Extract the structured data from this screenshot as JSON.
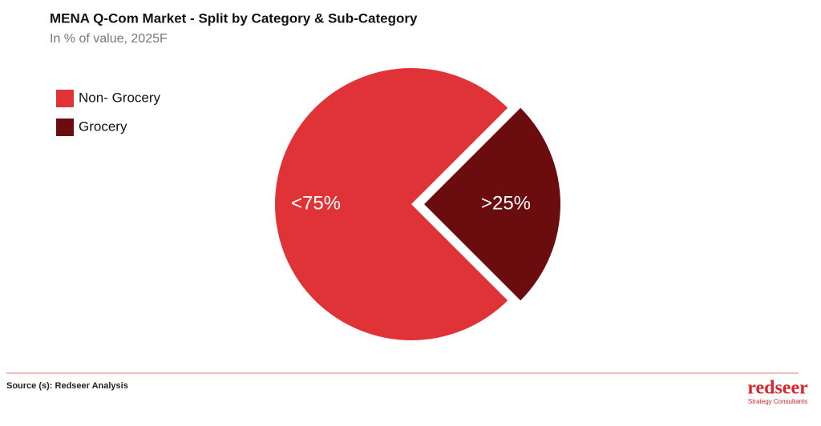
{
  "chart_data": {
    "type": "pie",
    "title": "MENA Q-Com Market - Split by Category & Sub-Category",
    "subtitle": "In % of value, 2025F",
    "categories": [
      "Non- Grocery",
      "Grocery"
    ],
    "values": [
      75,
      25
    ],
    "value_labels": [
      "<75%",
      ">25%"
    ],
    "colors": [
      "#e03337",
      "#6b0c0e"
    ],
    "legend": "upper left"
  },
  "footer": {
    "source": "Source (s): Redseer Analysis",
    "logo": "redseer",
    "logo_tagline": "Strategy Consultants"
  }
}
